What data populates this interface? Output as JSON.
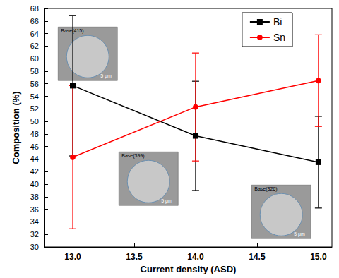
{
  "chart_data": {
    "type": "line",
    "x_label": "Current density (ASD)",
    "y_label": "Composition (%)",
    "x": [
      13,
      14,
      15
    ],
    "series": [
      {
        "name": "Bi",
        "color": "#000000",
        "marker": "square",
        "values": [
          55.7,
          47.7,
          43.5
        ],
        "errors": [
          11.2,
          8.7,
          7.3
        ]
      },
      {
        "name": "Sn",
        "color": "#ff0000",
        "marker": "circle",
        "values": [
          44.3,
          52.3,
          56.5
        ],
        "errors": [
          11.4,
          8.6,
          7.3
        ]
      }
    ],
    "xlim": [
      12.77,
      15.11
    ],
    "xticks": [
      {
        "value": 13,
        "label": "13.0"
      },
      {
        "value": 13.5,
        "label": "13.5"
      },
      {
        "value": 14,
        "label": "14.0"
      },
      {
        "value": 14.5,
        "label": "14.5"
      },
      {
        "value": 15,
        "label": "15.0"
      }
    ],
    "ylim": [
      30,
      68
    ],
    "yticks": [
      30,
      32,
      34,
      36,
      38,
      40,
      42,
      44,
      46,
      48,
      50,
      52,
      54,
      56,
      58,
      60,
      62,
      64,
      66,
      68
    ],
    "grid": false,
    "legend": "upper right",
    "annotations": [
      {
        "text": "Base(415)",
        "scale_bar": "5 μm"
      },
      {
        "text": "Base(399)",
        "scale_bar": "5 μm"
      },
      {
        "text": "Base(326)",
        "scale_bar": "5 μm"
      }
    ]
  }
}
